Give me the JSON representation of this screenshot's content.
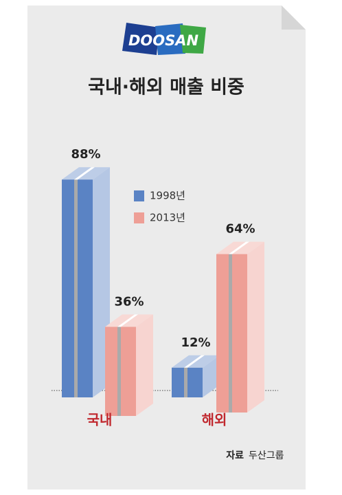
{
  "logo": "DOOSAN",
  "source": {
    "label": "자료",
    "text": "두산그룹"
  },
  "chart_data": {
    "type": "bar3d",
    "title": "국내·해외 매출 비중",
    "categories": [
      "국내",
      "해외"
    ],
    "series": [
      {
        "name": "1998년",
        "color": "#5a83c4",
        "values": [
          88,
          12
        ],
        "value_labels": [
          "88%",
          "12%"
        ]
      },
      {
        "name": "2013년",
        "color": "#ee9f96",
        "values": [
          36,
          64
        ],
        "value_labels": [
          "36%",
          "64%"
        ]
      }
    ]
  }
}
